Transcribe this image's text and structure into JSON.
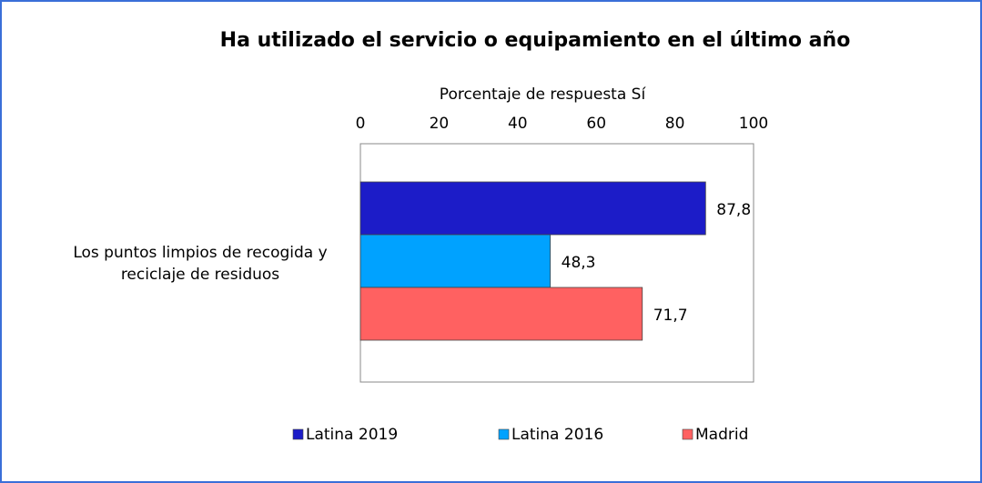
{
  "chart_data": {
    "type": "bar",
    "orientation": "horizontal",
    "title": "Ha utilizado el servicio o equipamiento en el último año",
    "x_label": "Porcentaje de respuesta Sí",
    "categories": [
      "Los puntos limpios de recogida y reciclaje de residuos"
    ],
    "series": [
      {
        "name": "Latina 2019",
        "color": "#1c1cc8",
        "values": [
          87.8
        ],
        "value_labels": [
          "87,8"
        ]
      },
      {
        "name": "Latina 2016",
        "color": "#00a2ff",
        "values": [
          48.3
        ],
        "value_labels": [
          "48,3"
        ]
      },
      {
        "name": "Madrid",
        "color": "#ff6161",
        "values": [
          71.7
        ],
        "value_labels": [
          "71,7"
        ]
      }
    ],
    "xlim": [
      0,
      100
    ],
    "xticks": [
      0,
      20,
      40,
      60,
      80,
      100
    ],
    "legend": "bottom"
  }
}
